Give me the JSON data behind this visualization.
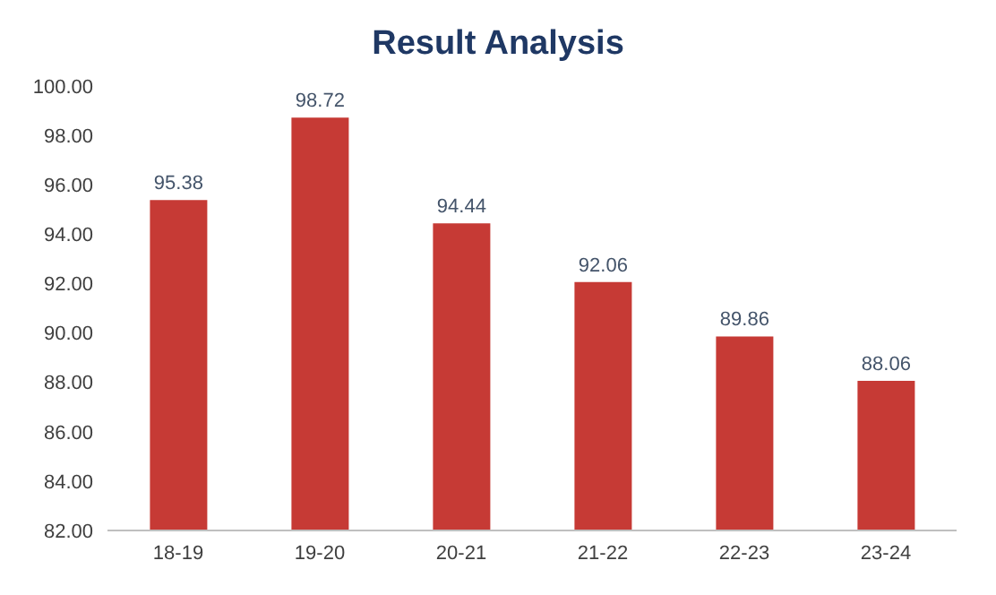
{
  "chart_data": {
    "type": "bar",
    "title": "Result Analysis",
    "categories": [
      "18-19",
      "19-20",
      "20-21",
      "21-22",
      "22-23",
      "23-24"
    ],
    "values": [
      95.38,
      98.72,
      94.44,
      92.06,
      89.86,
      88.06
    ],
    "color": "#c63a35",
    "ylim": [
      82,
      100
    ],
    "yticks": [
      {
        "value": 82,
        "label": "82.00"
      },
      {
        "value": 84,
        "label": "84.00"
      },
      {
        "value": 86,
        "label": "86.00"
      },
      {
        "value": 88,
        "label": "88.00"
      },
      {
        "value": 90,
        "label": "90.00"
      },
      {
        "value": 92,
        "label": "92.00"
      },
      {
        "value": 94,
        "label": "94.00"
      },
      {
        "value": 96,
        "label": "96.00"
      },
      {
        "value": 98,
        "label": "98.00"
      },
      {
        "value": 100,
        "label": "100.00"
      }
    ],
    "data_labels": true
  }
}
